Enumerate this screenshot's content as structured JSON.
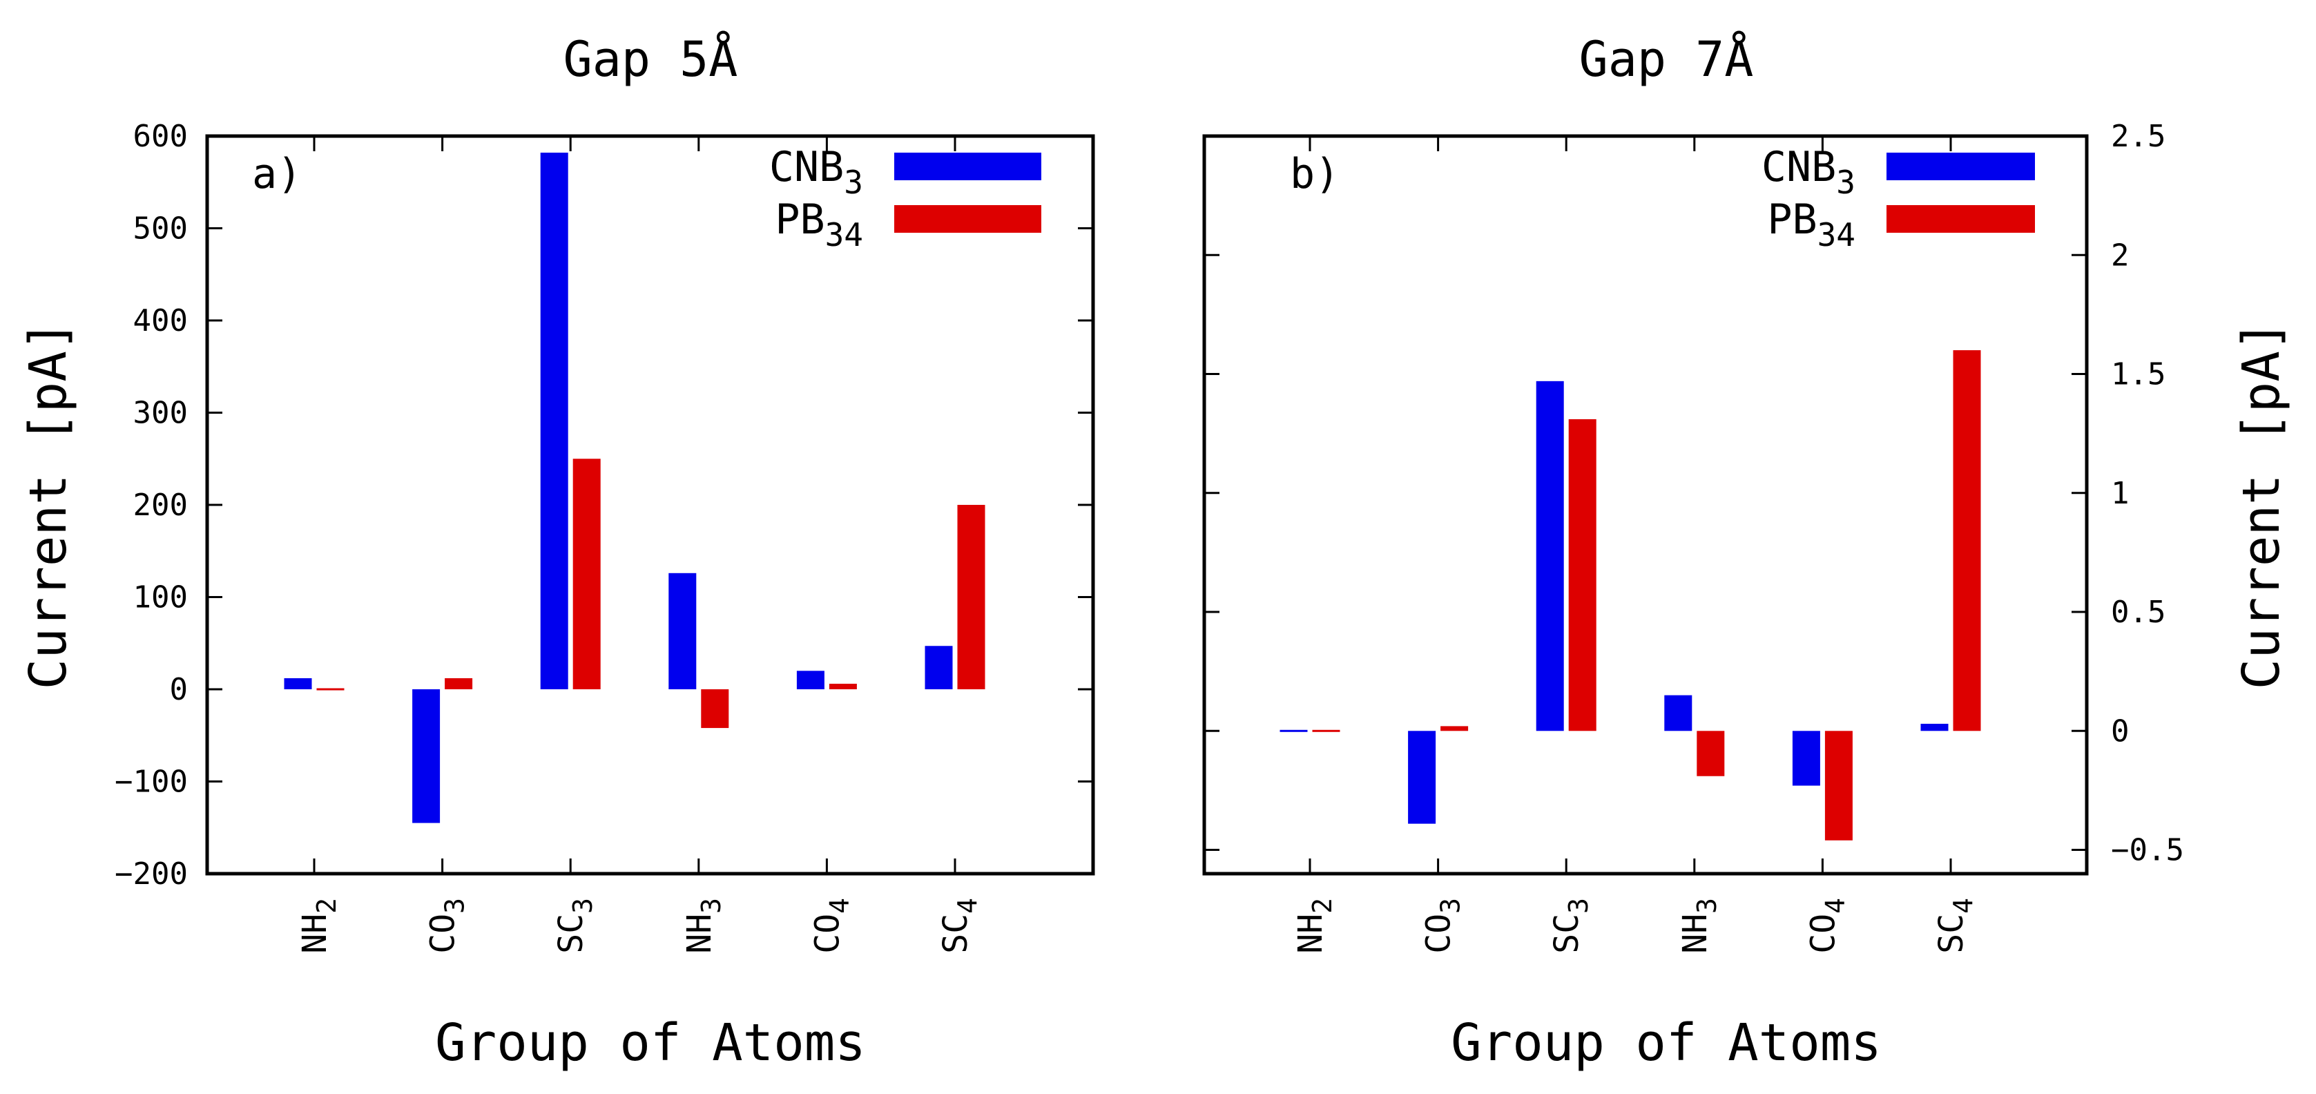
{
  "figure": {
    "colors": {
      "CNB3": "#0000ee",
      "PB34": "#dd0000",
      "frame": "#000000"
    }
  },
  "chart_data": [
    {
      "type": "bar",
      "panel": "a)",
      "title": "Gap 5Å",
      "xlabel": "Group of Atoms",
      "ylabel": "Current [pA]",
      "ylabel_side": "left",
      "ylim": [
        -200,
        600
      ],
      "yticks": [
        -200,
        -100,
        0,
        100,
        200,
        300,
        400,
        500,
        600
      ],
      "ytick_labels": [
        "−200",
        "−100",
        "0",
        "100",
        "200",
        "300",
        "400",
        "500",
        "600"
      ],
      "categories": [
        {
          "base": "NH",
          "sub": "2"
        },
        {
          "base": "CO",
          "sub": "3"
        },
        {
          "base": "SC",
          "sub": "3"
        },
        {
          "base": "NH",
          "sub": "3"
        },
        {
          "base": "CO",
          "sub": "4"
        },
        {
          "base": "SC",
          "sub": "4"
        }
      ],
      "series": [
        {
          "name": "CNB",
          "sub": "3",
          "color": "#0000ee",
          "values": [
            12,
            -145,
            582,
            126,
            20,
            47
          ]
        },
        {
          "name": "PB",
          "sub": "34",
          "color": "#dd0000",
          "values": [
            -1,
            12,
            250,
            -42,
            6,
            200
          ]
        }
      ],
      "legend": "top-right"
    },
    {
      "type": "bar",
      "panel": "b)",
      "title": "Gap 7Å",
      "xlabel": "Group of Atoms",
      "ylabel": "Current [pA]",
      "ylabel_side": "right",
      "ylim": [
        -0.6,
        2.5
      ],
      "yticks": [
        -0.5,
        0,
        0.5,
        1,
        1.5,
        2,
        2.5
      ],
      "ytick_labels": [
        "−0.5",
        "0",
        "0.5",
        "1",
        "1.5",
        "2",
        "2.5"
      ],
      "categories": [
        {
          "base": "NH",
          "sub": "2"
        },
        {
          "base": "CO",
          "sub": "3"
        },
        {
          "base": "SC",
          "sub": "3"
        },
        {
          "base": "NH",
          "sub": "3"
        },
        {
          "base": "CO",
          "sub": "4"
        },
        {
          "base": "SC",
          "sub": "4"
        }
      ],
      "series": [
        {
          "name": "CNB",
          "sub": "3",
          "color": "#0000ee",
          "values": [
            0,
            -0.39,
            1.47,
            0.15,
            -0.23,
            0.03
          ]
        },
        {
          "name": "PB",
          "sub": "34",
          "color": "#dd0000",
          "values": [
            0,
            0.02,
            1.31,
            -0.19,
            -0.46,
            1.6
          ]
        }
      ],
      "legend": "top-right"
    }
  ]
}
